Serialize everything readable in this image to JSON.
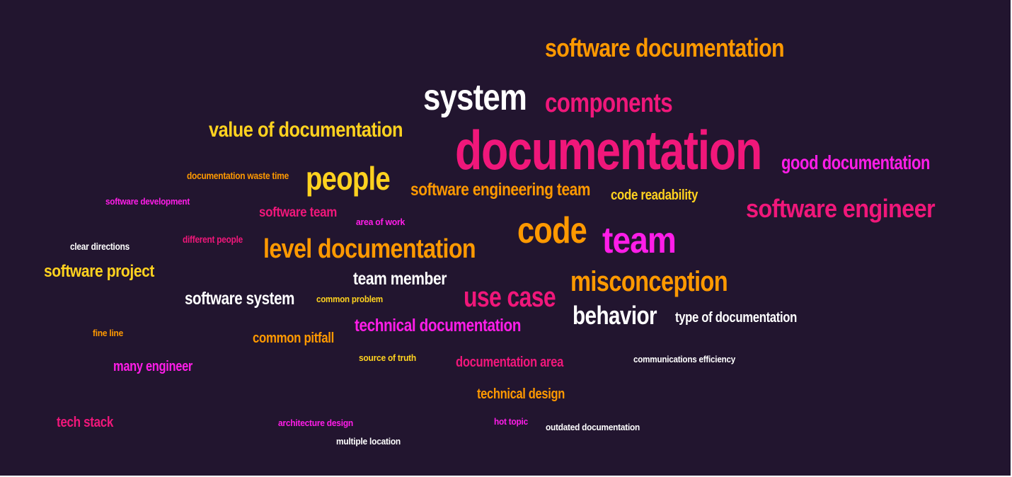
{
  "palette": {
    "background": "#22152f",
    "white": "#ffffff",
    "orange": "#ff9900",
    "yellow": "#ffd21f",
    "pink": "#f0177a",
    "magenta": "#ff1de8"
  },
  "words": [
    {
      "text": "software documentation",
      "color": "orange"
    },
    {
      "text": "system",
      "color": "white"
    },
    {
      "text": "components",
      "color": "pink"
    },
    {
      "text": "value of documentation",
      "color": "yellow"
    },
    {
      "text": "documentation",
      "color": "pink"
    },
    {
      "text": "good documentation",
      "color": "magenta"
    },
    {
      "text": "documentation waste time",
      "color": "orange"
    },
    {
      "text": "people",
      "color": "yellow"
    },
    {
      "text": "software engineering team",
      "color": "orange"
    },
    {
      "text": "code readability",
      "color": "yellow"
    },
    {
      "text": "software development",
      "color": "magenta"
    },
    {
      "text": "software team",
      "color": "pink"
    },
    {
      "text": "area of work",
      "color": "magenta"
    },
    {
      "text": "software engineer",
      "color": "pink"
    },
    {
      "text": "code",
      "color": "orange"
    },
    {
      "text": "team",
      "color": "magenta"
    },
    {
      "text": "clear directions",
      "color": "white"
    },
    {
      "text": "different people",
      "color": "pink"
    },
    {
      "text": "level documentation",
      "color": "orange"
    },
    {
      "text": "software project",
      "color": "yellow"
    },
    {
      "text": "team member",
      "color": "white"
    },
    {
      "text": "misconception",
      "color": "orange"
    },
    {
      "text": "software system",
      "color": "white"
    },
    {
      "text": "common problem",
      "color": "yellow"
    },
    {
      "text": "use case",
      "color": "pink"
    },
    {
      "text": "behavior",
      "color": "white"
    },
    {
      "text": "type of documentation",
      "color": "white"
    },
    {
      "text": "technical documentation",
      "color": "magenta"
    },
    {
      "text": "fine line",
      "color": "orange"
    },
    {
      "text": "common pitfall",
      "color": "orange"
    },
    {
      "text": "source of truth",
      "color": "yellow"
    },
    {
      "text": "documentation area",
      "color": "pink"
    },
    {
      "text": "communications efficiency",
      "color": "white"
    },
    {
      "text": "many engineer",
      "color": "magenta"
    },
    {
      "text": "technical design",
      "color": "orange"
    },
    {
      "text": "tech stack",
      "color": "pink"
    },
    {
      "text": "architecture design",
      "color": "magenta"
    },
    {
      "text": "hot topic",
      "color": "magenta"
    },
    {
      "text": "outdated documentation",
      "color": "white"
    },
    {
      "text": "multiple location",
      "color": "white"
    }
  ]
}
